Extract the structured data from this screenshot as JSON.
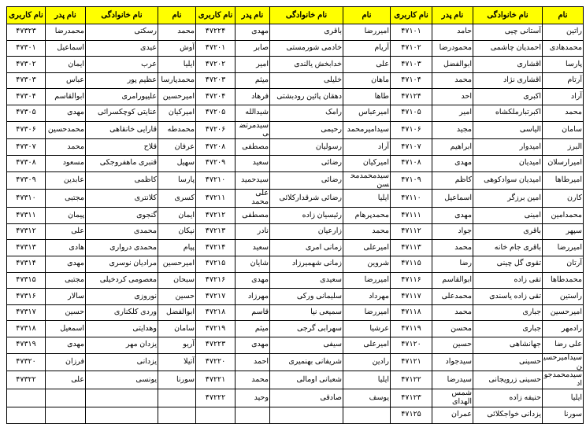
{
  "headers": [
    "نام",
    "نام خانوادگی",
    "نام پدر",
    "نام کاربری"
  ],
  "colors": {
    "header_bg": "#ffff00"
  },
  "groups": [
    {
      "rows": [
        [
          "راتین",
          "آستانی چیی",
          "حامد",
          "۴۷۱۰۱"
        ],
        [
          "محمدهادی",
          "احمدیان چاشمی",
          "محمودرضا",
          "۴۷۱۰۲"
        ],
        [
          "پارسا",
          "اقشاری",
          "ابوالفضل",
          "۴۷۱۰۳"
        ],
        [
          "آرتام",
          "اقشاری نژاد",
          "محمد",
          "۴۷۱۰۴"
        ],
        [
          "آراد",
          "اکبری",
          "احد",
          "۴۷۱۲۴"
        ],
        [
          "محمد",
          "اکبرتبارملکشاه",
          "امیر",
          "۴۷۱۰۵"
        ],
        [
          "سامان",
          "الیاسی",
          "مجید",
          "۴۷۱۰۶"
        ],
        [
          "البرز",
          "امیدوار",
          "ابراهیم",
          "۴۷۱۰۷"
        ],
        [
          "امیرارسلان",
          "امیدیان",
          "مهدی",
          "۴۷۱۰۸"
        ],
        [
          "امیرطاها",
          "امیدیان سوادکوهی",
          "کاظم",
          "۴۷۱۰۹"
        ],
        [
          "کارن",
          "امین برزگر",
          "اسماعیل",
          "۴۷۱۱۰"
        ],
        [
          "محمدامین",
          "امینی",
          "مهدی",
          "۴۷۱۱۱"
        ],
        [
          "سپهر",
          "باقری",
          "جواد",
          "۴۷۱۱۲"
        ],
        [
          "امیررضا",
          "باقری جام خانه",
          "محمد",
          "۴۷۱۱۳"
        ],
        [
          "آرتان",
          "تقوی گل چینی",
          "رضا",
          "۴۷۱۱۵"
        ],
        [
          "محمدطاها",
          "تقی زاده",
          "ابوالقاسم",
          "۴۷۱۱۶"
        ],
        [
          "راستین",
          "تقی زاده یاسندی",
          "محمدعلی",
          "۴۷۱۱۷"
        ],
        [
          "امیرحسین",
          "جباری",
          "محمد",
          "۴۷۱۱۸"
        ],
        [
          "رادمهر",
          "جباری",
          "محسن",
          "۴۷۱۱۹"
        ],
        [
          "علی رضا",
          "جهانشاهی",
          "حسین",
          "۴۷۱۲۰"
        ],
        [
          "سیدامیرحسین",
          "حسینی",
          "سیدجواد",
          "۴۷۱۲۱"
        ],
        [
          "سیدمحمدجواد",
          "حسینی زرویجانی",
          "سیدرضا",
          "۴۷۱۲۲"
        ],
        [
          "ایلیا",
          "حنیفه زاده",
          "شمس الهدای",
          "۴۷۱۲۳"
        ],
        [
          "سورنا",
          "یزدانی خواجکلائی",
          "عمران",
          "۴۷۱۲۵"
        ]
      ]
    },
    {
      "rows": [
        [
          "امیررضا",
          "باقری",
          "مهدی",
          "۴۷۲۲۴"
        ],
        [
          "آریام",
          "خادمی شورمستی",
          "صابر",
          "۴۷۲۰۱"
        ],
        [
          "علی",
          "خدابخش یالندی",
          "امیر",
          "۴۷۲۰۲"
        ],
        [
          "ماهان",
          "خلیلی",
          "میثم",
          "۴۷۲۰۳"
        ],
        [
          "طاها",
          "دهقان پائین رودبشتی",
          "فرهاد",
          "۴۷۲۰۴"
        ],
        [
          "امیرعباس",
          "رامک",
          "شیدالله",
          "۴۷۲۰۵"
        ],
        [
          "سیدامیرمحمد",
          "رحیمی",
          "سیدمرتضی",
          "۴۷۲۰۶"
        ],
        [
          "آراد",
          "رسولیان",
          "مصطفی",
          "۴۷۲۰۸"
        ],
        [
          "امیرکیان",
          "رضائی",
          "سعید",
          "۴۷۲۰۹"
        ],
        [
          "سیدمحمدمحسن",
          "رضائی",
          "سیدحمید",
          "۴۷۲۱۰"
        ],
        [
          "ایلیا",
          "رضائی شرقدارکلائی",
          "علی محمد",
          "۴۷۲۱۱"
        ],
        [
          "محمدپرهام",
          "رئیسیان زاده",
          "مصطفی",
          "۴۷۲۱۲"
        ],
        [
          "محمد",
          "زارعیان",
          "نادر",
          "۴۷۲۱۳"
        ],
        [
          "امیرعلی",
          "زمانی امری",
          "سعید",
          "۴۷۲۱۴"
        ],
        [
          "شروین",
          "زمانی شهمیرزاد",
          "شایان",
          "۴۷۲۱۵"
        ],
        [
          "امیررضا",
          "سعیدی",
          "مهدی",
          "۴۷۲۱۶"
        ],
        [
          "مهرداد",
          "سلیمانی ورکی",
          "مهرزاد",
          "۴۷۲۱۷"
        ],
        [
          "امیررضا",
          "سمیعی نیا",
          "قاسم",
          "۴۷۲۱۸"
        ],
        [
          "عرشیا",
          "سهرابی گرجی",
          "میثم",
          "۴۷۲۱۹"
        ],
        [
          "امیرعلی",
          "سیفی",
          "مهدی",
          "۴۷۲۲۳"
        ],
        [
          "رادین",
          "شریفانی بهنمیری",
          "احمد",
          "۴۷۲۲۰"
        ],
        [
          "ایلیا",
          "شعبانی اومالی",
          "محمد",
          "۴۷۲۲۱"
        ],
        [
          "یوسف",
          "صادقی",
          "وحید",
          "۴۷۲۲۲"
        ],
        [
          "",
          "",
          "",
          ""
        ]
      ]
    },
    {
      "rows": [
        [
          "محمد",
          "رسکتی",
          "محمدرضا",
          "۴۷۳۲۳"
        ],
        [
          "آوش",
          "عیدی",
          "اسماعیل",
          "۴۷۳۰۱"
        ],
        [
          "ایلیا",
          "عرب",
          "ایمان",
          "۴۷۳۰۲"
        ],
        [
          "محمدپارسا",
          "عظیم پور",
          "عباس",
          "۴۷۳۰۳"
        ],
        [
          "امیرحسین",
          "علیپورامری",
          "ابوالقاسم",
          "۴۷۳۰۴"
        ],
        [
          "امیرکیان",
          "عنایتی کوچکسرائی",
          "مهدی",
          "۴۷۳۰۵"
        ],
        [
          "محمدطه",
          "قارایی خانقاهی",
          "محمدحسین",
          "۴۷۳۰۶"
        ],
        [
          "عرفان",
          "قلاح",
          "محمد",
          "۴۷۳۰۷"
        ],
        [
          "سهیل",
          "قنبری ماهفروجکی",
          "مسعود",
          "۴۷۳۰۸"
        ],
        [
          "پارسا",
          "کاظمی",
          "عابدین",
          "۴۷۳۰۹"
        ],
        [
          "کسری",
          "کلانتری",
          "مجتبی",
          "۴۷۳۱۰"
        ],
        [
          "ایمان",
          "گنجوی",
          "پیمان",
          "۴۷۳۱۱"
        ],
        [
          "نیکان",
          "محمدی",
          "علی",
          "۴۷۳۱۲"
        ],
        [
          "پیام",
          "محمدی درواری",
          "هادی",
          "۴۷۳۱۳"
        ],
        [
          "امیرحسین",
          "مرادیان نوسری",
          "مهدی",
          "۴۷۳۱۴"
        ],
        [
          "سبحان",
          "معصومی کردخیلی",
          "مجتبی",
          "۴۷۳۱۵"
        ],
        [
          "حسین",
          "نوروزی",
          "سالار",
          "۴۷۳۱۶"
        ],
        [
          "ابوالفضل",
          "وردی کلکناری",
          "حسین",
          "۴۷۳۱۷"
        ],
        [
          "سامان",
          "وهدایتی",
          "اسمعیل",
          "۴۷۳۱۸"
        ],
        [
          "آریو",
          "یزدان مهر",
          "مهدی",
          "۴۷۳۱۹"
        ],
        [
          "آتیلا",
          "یزدانی",
          "فرزان",
          "۴۷۳۲۰"
        ],
        [
          "سورنا",
          "یونسی",
          "علی",
          "۴۷۳۲۲"
        ],
        [
          "",
          "",
          "",
          ""
        ],
        [
          "",
          "",
          "",
          ""
        ]
      ]
    }
  ]
}
